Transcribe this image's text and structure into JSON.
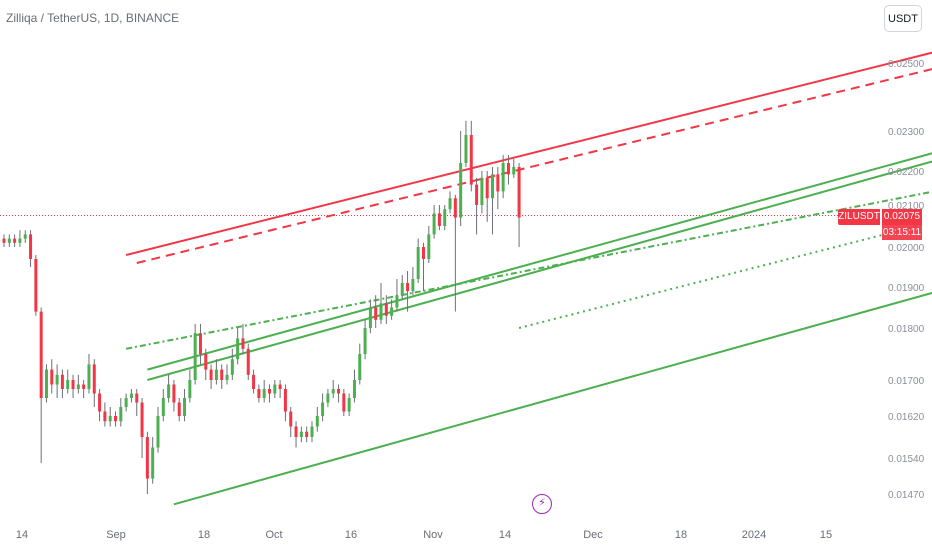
{
  "header": {
    "title": "Zilliqa / TetherUS, 1D, BINANCE"
  },
  "currency_button": {
    "label": "USDT"
  },
  "last_price": {
    "symbol": "ZILUSDT",
    "price": "0.02075",
    "countdown": "03:15:11"
  },
  "colors": {
    "up": "#4caf50",
    "down": "#f23645",
    "wick": "#6b6f78",
    "red_line": "#f23645",
    "green_line": "#4caf50",
    "event": "#9c27b0"
  },
  "icons": {
    "event_marker": "flash-icon"
  },
  "chart_data": {
    "type": "candlestick",
    "x_ticks": [
      "14",
      "Sep",
      "18",
      "Oct",
      "16",
      "Nov",
      "14",
      "Dec",
      "18",
      "2024",
      "15"
    ],
    "y_ticks": [
      "0.02500",
      "0.02300",
      "0.02200",
      "0.02100",
      "0.02000",
      "0.01900",
      "0.01800",
      "0.01700",
      "0.01620",
      "0.01540",
      "0.01470"
    ],
    "last_price_value": 0.02075,
    "candles": [
      [
        0.0202,
        0.0201,
        0.0203,
        0.02
      ],
      [
        0.0201,
        0.0202,
        0.0203,
        0.02
      ],
      [
        0.0202,
        0.0201,
        0.0203,
        0.02
      ],
      [
        0.0201,
        0.0202,
        0.0204,
        0.02
      ],
      [
        0.0202,
        0.0203,
        0.0204,
        0.0201
      ],
      [
        0.0203,
        0.0197,
        0.0204,
        0.0195
      ],
      [
        0.0197,
        0.0184,
        0.0198,
        0.0183
      ],
      [
        0.0184,
        0.0166,
        0.0185,
        0.0153
      ],
      [
        0.0166,
        0.0172,
        0.0173,
        0.0165
      ],
      [
        0.0172,
        0.0169,
        0.0174,
        0.0167
      ],
      [
        0.0169,
        0.0171,
        0.0173,
        0.0166
      ],
      [
        0.0171,
        0.0168,
        0.0172,
        0.0166
      ],
      [
        0.0168,
        0.017,
        0.0172,
        0.0167
      ],
      [
        0.017,
        0.0168,
        0.0171,
        0.0166
      ],
      [
        0.0168,
        0.0169,
        0.0171,
        0.0167
      ],
      [
        0.0169,
        0.0168,
        0.017,
        0.0166
      ],
      [
        0.0168,
        0.0173,
        0.0175,
        0.0167
      ],
      [
        0.0173,
        0.0167,
        0.0174,
        0.0164
      ],
      [
        0.0167,
        0.0163,
        0.0168,
        0.0161
      ],
      [
        0.0163,
        0.0161,
        0.0165,
        0.016
      ],
      [
        0.0161,
        0.0162,
        0.0164,
        0.016
      ],
      [
        0.0162,
        0.0161,
        0.0163,
        0.016
      ],
      [
        0.0161,
        0.0164,
        0.0166,
        0.016
      ],
      [
        0.0164,
        0.0166,
        0.0167,
        0.0163
      ],
      [
        0.0166,
        0.0167,
        0.0168,
        0.0165
      ],
      [
        0.0167,
        0.0165,
        0.0168,
        0.0162
      ],
      [
        0.0165,
        0.0158,
        0.0166,
        0.0154
      ],
      [
        0.0158,
        0.015,
        0.0159,
        0.0147
      ],
      [
        0.015,
        0.0156,
        0.0158,
        0.0149
      ],
      [
        0.0156,
        0.0162,
        0.0164,
        0.0155
      ],
      [
        0.0162,
        0.0166,
        0.0168,
        0.0161
      ],
      [
        0.0166,
        0.0169,
        0.0171,
        0.0165
      ],
      [
        0.0169,
        0.0165,
        0.017,
        0.0163
      ],
      [
        0.0165,
        0.0162,
        0.0166,
        0.0161
      ],
      [
        0.0162,
        0.0166,
        0.0168,
        0.0161
      ],
      [
        0.0166,
        0.017,
        0.0172,
        0.0165
      ],
      [
        0.017,
        0.0179,
        0.0181,
        0.0169
      ],
      [
        0.0179,
        0.0175,
        0.0181,
        0.0173
      ],
      [
        0.0175,
        0.0172,
        0.0176,
        0.017
      ],
      [
        0.0172,
        0.017,
        0.0173,
        0.0168
      ],
      [
        0.017,
        0.0172,
        0.0174,
        0.0169
      ],
      [
        0.0172,
        0.017,
        0.0173,
        0.0168
      ],
      [
        0.017,
        0.0171,
        0.0173,
        0.0169
      ],
      [
        0.0171,
        0.0174,
        0.0176,
        0.017
      ],
      [
        0.0174,
        0.0178,
        0.018,
        0.0173
      ],
      [
        0.0178,
        0.0176,
        0.0181,
        0.0175
      ],
      [
        0.0176,
        0.0171,
        0.0177,
        0.017
      ],
      [
        0.0171,
        0.0168,
        0.0172,
        0.0167
      ],
      [
        0.0168,
        0.0166,
        0.0169,
        0.0165
      ],
      [
        0.0166,
        0.0168,
        0.017,
        0.0165
      ],
      [
        0.0168,
        0.0167,
        0.0169,
        0.0165
      ],
      [
        0.0167,
        0.0169,
        0.017,
        0.0166
      ],
      [
        0.0169,
        0.0168,
        0.017,
        0.0166
      ],
      [
        0.0168,
        0.0163,
        0.0169,
        0.0161
      ],
      [
        0.0163,
        0.016,
        0.0164,
        0.0158
      ],
      [
        0.016,
        0.0158,
        0.0161,
        0.0156
      ],
      [
        0.0158,
        0.0159,
        0.016,
        0.0157
      ],
      [
        0.0159,
        0.0158,
        0.016,
        0.0157
      ],
      [
        0.0158,
        0.016,
        0.0161,
        0.0157
      ],
      [
        0.016,
        0.0162,
        0.0164,
        0.0159
      ],
      [
        0.0162,
        0.0165,
        0.0167,
        0.0161
      ],
      [
        0.0165,
        0.0167,
        0.0168,
        0.0164
      ],
      [
        0.0167,
        0.0168,
        0.017,
        0.0166
      ],
      [
        0.0168,
        0.0167,
        0.0169,
        0.0165
      ],
      [
        0.0167,
        0.0163,
        0.0168,
        0.0162
      ],
      [
        0.0163,
        0.0166,
        0.0167,
        0.0162
      ],
      [
        0.0166,
        0.017,
        0.0172,
        0.0165
      ],
      [
        0.017,
        0.0175,
        0.0177,
        0.0169
      ],
      [
        0.0175,
        0.018,
        0.0182,
        0.0174
      ],
      [
        0.018,
        0.0185,
        0.0187,
        0.0179
      ],
      [
        0.0185,
        0.0182,
        0.0188,
        0.018
      ],
      [
        0.0182,
        0.0186,
        0.0191,
        0.0181
      ],
      [
        0.0186,
        0.0183,
        0.0188,
        0.0181
      ],
      [
        0.0183,
        0.0185,
        0.0187,
        0.0182
      ],
      [
        0.0185,
        0.0188,
        0.0192,
        0.0184
      ],
      [
        0.0188,
        0.0191,
        0.0193,
        0.0187
      ],
      [
        0.0191,
        0.0189,
        0.0194,
        0.0184
      ],
      [
        0.0189,
        0.0192,
        0.0195,
        0.0188
      ],
      [
        0.0192,
        0.02,
        0.0202,
        0.0191
      ],
      [
        0.02,
        0.0197,
        0.0201,
        0.0189
      ],
      [
        0.0197,
        0.0203,
        0.0205,
        0.0196
      ],
      [
        0.0203,
        0.0208,
        0.021,
        0.0202
      ],
      [
        0.0208,
        0.0205,
        0.021,
        0.0204
      ],
      [
        0.0205,
        0.0209,
        0.021,
        0.0204
      ],
      [
        0.0209,
        0.0212,
        0.0214,
        0.0208
      ],
      [
        0.0212,
        0.0207,
        0.0213,
        0.0184
      ],
      [
        0.0207,
        0.0222,
        0.023,
        0.0205
      ],
      [
        0.0222,
        0.0229,
        0.0233,
        0.0221
      ],
      [
        0.0229,
        0.0216,
        0.0233,
        0.0214
      ],
      [
        0.0216,
        0.021,
        0.0218,
        0.0203
      ],
      [
        0.021,
        0.0218,
        0.022,
        0.0208
      ],
      [
        0.0218,
        0.0212,
        0.022,
        0.0206
      ],
      [
        0.0212,
        0.0219,
        0.0221,
        0.0203
      ],
      [
        0.0219,
        0.0214,
        0.0221,
        0.0209
      ],
      [
        0.0214,
        0.0222,
        0.0224,
        0.0212
      ],
      [
        0.0222,
        0.0219,
        0.0224,
        0.0216
      ],
      [
        0.0219,
        0.0221,
        0.0223,
        0.0218
      ],
      [
        0.0221,
        0.0207,
        0.0222,
        0.02
      ]
    ],
    "trendlines": [
      {
        "style": "solid",
        "color": "red",
        "from": [
          23,
          0.0198
        ],
        "to": [
          190,
          0.0259
        ]
      },
      {
        "style": "dashed",
        "color": "red",
        "from": [
          25,
          0.0196
        ],
        "to": [
          190,
          0.0254
        ]
      },
      {
        "style": "solid",
        "color": "green",
        "from": [
          27,
          0.0172
        ],
        "to": [
          190,
          0.023
        ]
      },
      {
        "style": "solid",
        "color": "green",
        "from": [
          27,
          0.017
        ],
        "to": [
          190,
          0.0228
        ]
      },
      {
        "style": "dash-dot",
        "color": "green",
        "from": [
          23,
          0.0176
        ],
        "to": [
          185,
          0.0217
        ]
      },
      {
        "style": "dotted",
        "color": "green",
        "from": [
          97,
          0.018
        ],
        "to": [
          172,
          0.0205
        ]
      },
      {
        "style": "solid",
        "color": "green",
        "from": [
          32,
          0.0145
        ],
        "to": [
          195,
          0.0196
        ]
      }
    ]
  }
}
